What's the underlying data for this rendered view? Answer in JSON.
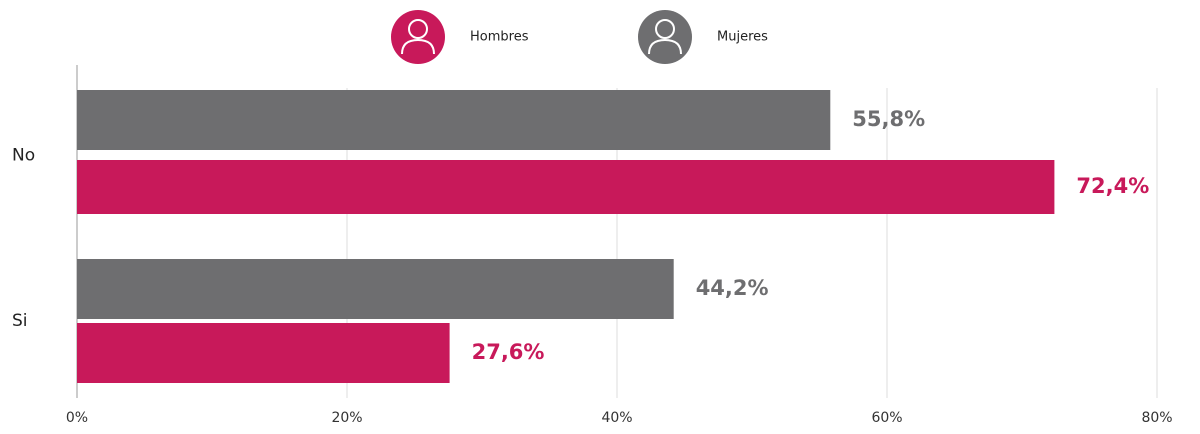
{
  "chart_data": {
    "type": "bar",
    "orientation": "horizontal",
    "categories": [
      "No",
      "Si"
    ],
    "series": [
      {
        "name": "Hombres",
        "color": "#c8195a",
        "values": [
          72.4,
          27.6
        ],
        "value_labels": [
          "72,4%",
          "27,6%"
        ]
      },
      {
        "name": "Mujeres",
        "color": "#6e6e70",
        "values": [
          55.8,
          44.2
        ],
        "value_labels": [
          "55,8%",
          "44,2%"
        ]
      }
    ],
    "xlim": [
      0,
      80
    ],
    "xticks": [
      {
        "value": 0,
        "label": "0%"
      },
      {
        "value": 20,
        "label": "20%"
      },
      {
        "value": 40,
        "label": "40%"
      },
      {
        "value": 60,
        "label": "60%"
      },
      {
        "value": 80,
        "label": "80%"
      }
    ],
    "grid": true,
    "legend": "top"
  }
}
